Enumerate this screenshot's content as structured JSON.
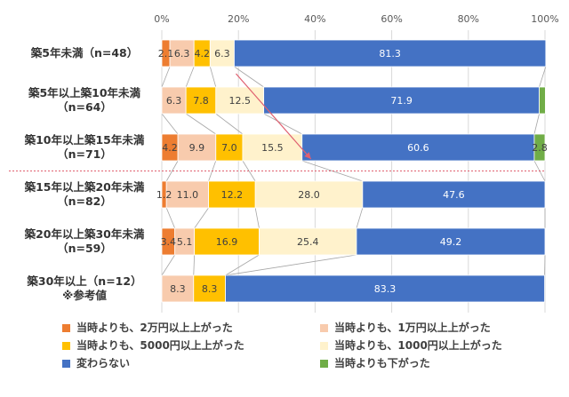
{
  "chart_data": {
    "type": "bar",
    "orientation": "horizontal",
    "stacked": "percent",
    "xlim": [
      0,
      100
    ],
    "ticks": [
      "0%",
      "20%",
      "40%",
      "60%",
      "80%",
      "100%"
    ],
    "grid": true,
    "legend_position": "bottom",
    "categories": [
      [
        "築5年未満（n=48）"
      ],
      [
        "築5年以上築10年未満",
        "（n=64）"
      ],
      [
        "築10年以上築15年未満",
        "（n=71）"
      ],
      [
        "築15年以上築20年未満",
        "（n=82）"
      ],
      [
        "築20年以上築30年未満",
        "（n=59）"
      ],
      [
        "築30年以上（n=12）",
        "※参考値"
      ]
    ],
    "series": [
      {
        "name": "当時よりも、2万円以上上がった",
        "color": "#ED7D31",
        "values": [
          2.1,
          0,
          4.2,
          1.2,
          3.4,
          0
        ]
      },
      {
        "name": "当時よりも、1万円以上上がった",
        "color": "#F8CBAD",
        "values": [
          6.3,
          6.3,
          9.9,
          11.0,
          5.1,
          8.3
        ]
      },
      {
        "name": "当時よりも、5000円以上上がった",
        "color": "#FFC000",
        "values": [
          4.2,
          7.8,
          7.0,
          12.2,
          16.9,
          8.3
        ]
      },
      {
        "name": "当時よりも、1000円以上上がった",
        "color": "#FFF2CC",
        "values": [
          6.3,
          12.5,
          15.5,
          28.0,
          25.4,
          0
        ]
      },
      {
        "name": "変わらない",
        "color": "#4472C4",
        "values": [
          81.3,
          71.9,
          60.6,
          47.6,
          49.2,
          83.3
        ]
      },
      {
        "name": "当時よりも下がった",
        "color": "#70AD47",
        "values": [
          0,
          1.6,
          2.8,
          0,
          0,
          0
        ]
      }
    ],
    "labels": [
      [
        "2.1",
        "6.3",
        "4.2",
        "6.3",
        "81.3",
        ""
      ],
      [
        "",
        "6.3",
        "7.8",
        "12.5",
        "71.9",
        ""
      ],
      [
        "4.2",
        "9.9",
        "7.0",
        "15.5",
        "60.6",
        "2.8"
      ],
      [
        "1.2",
        "11.0",
        "12.2",
        "28.0",
        "47.6",
        ""
      ],
      [
        "3.4",
        "5.1",
        "16.9",
        "25.4",
        "49.2",
        ""
      ],
      [
        "",
        "8.3",
        "8.3",
        "",
        "83.3",
        ""
      ]
    ],
    "annotations": {
      "divider_after_category": 2,
      "arrow_from_category": 0,
      "arrow_to_category": 2
    }
  }
}
